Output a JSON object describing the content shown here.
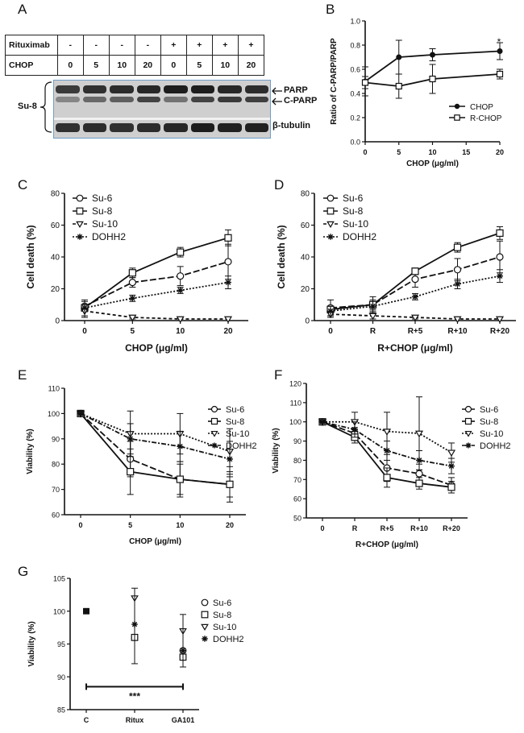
{
  "panels": {
    "A": "A",
    "B": "B",
    "C": "C",
    "D": "D",
    "E": "E",
    "F": "F",
    "G": "G"
  },
  "blot": {
    "rows": [
      {
        "label": "Rituximab",
        "values": [
          "-",
          "-",
          "-",
          "-",
          "+",
          "+",
          "+",
          "+"
        ]
      },
      {
        "label": "CHOP",
        "values": [
          "0",
          "5",
          "10",
          "20",
          "0",
          "5",
          "10",
          "20"
        ]
      }
    ],
    "cell_line": "Su-8",
    "band_labels": [
      "PARP",
      "C-PARP",
      "β-tubulin"
    ],
    "intensity": {
      "parp": [
        0.75,
        0.8,
        0.82,
        0.85,
        0.9,
        0.9,
        0.85,
        0.82
      ],
      "cparp": [
        0.35,
        0.5,
        0.55,
        0.7,
        0.45,
        0.7,
        0.75,
        0.72
      ],
      "tubulin": [
        0.8,
        0.82,
        0.8,
        0.82,
        0.85,
        0.9,
        0.88,
        0.88
      ]
    }
  },
  "chart_data": [
    {
      "id": "B",
      "type": "line",
      "xlabel": "CHOP (μg/ml)",
      "ylabel": "Ratio of C-PARP/PARP",
      "xlim": [
        0,
        20
      ],
      "ylim": [
        0,
        1.0
      ],
      "xticks": [
        "0",
        "5",
        "10",
        "15",
        "20"
      ],
      "yticks": [
        "0.0",
        "0.2",
        "0.4",
        "0.6",
        "0.8",
        "1.0"
      ],
      "x": [
        0,
        5,
        10,
        20
      ],
      "series": [
        {
          "name": "CHOP",
          "marker": "dot",
          "dash": "solid",
          "values": [
            0.5,
            0.7,
            0.72,
            0.75
          ],
          "err": [
            0.12,
            0.14,
            0.05,
            0.07
          ]
        },
        {
          "name": "R-CHOP",
          "marker": "square",
          "dash": "solid",
          "values": [
            0.49,
            0.46,
            0.52,
            0.56
          ],
          "err": [
            0.05,
            0.1,
            0.12,
            0.04
          ]
        }
      ],
      "annotations": [
        "*"
      ],
      "legend": "bottom-right"
    },
    {
      "id": "C",
      "type": "line",
      "xlabel": "CHOP (μg/ml)",
      "ylabel": "Cell death (%)",
      "ylim": [
        0,
        80
      ],
      "yticks": [
        "0",
        "20",
        "40",
        "60",
        "80"
      ],
      "categories": [
        "0",
        "5",
        "10",
        "20"
      ],
      "series": [
        {
          "name": "Su-6",
          "marker": "circle",
          "dash": "long",
          "values": [
            9,
            24,
            28,
            37
          ],
          "err": [
            3,
            3,
            6,
            11
          ]
        },
        {
          "name": "Su-8",
          "marker": "square",
          "dash": "solid",
          "values": [
            8,
            30,
            43,
            52
          ],
          "err": [
            2,
            3,
            3,
            5
          ]
        },
        {
          "name": "Su-10",
          "marker": "triangle",
          "dash": "dashed",
          "values": [
            6,
            2,
            1,
            1
          ],
          "err": [
            4,
            1,
            1,
            1
          ]
        },
        {
          "name": "DOHH2",
          "marker": "star",
          "dash": "dotted",
          "values": [
            8,
            14,
            19,
            24
          ],
          "err": [
            5,
            2,
            2,
            4
          ]
        }
      ],
      "legend": "top-left"
    },
    {
      "id": "D",
      "type": "line",
      "xlabel": "R+CHOP (μg/ml)",
      "ylabel": "Cell death (%)",
      "ylim": [
        0,
        80
      ],
      "yticks": [
        "0",
        "20",
        "40",
        "60",
        "80"
      ],
      "categories": [
        "0",
        "R",
        "R+5",
        "R+10",
        "R+20"
      ],
      "series": [
        {
          "name": "Su-6",
          "marker": "circle",
          "dash": "long",
          "values": [
            8,
            10,
            26,
            32,
            40
          ],
          "err": [
            5,
            5,
            5,
            7,
            10
          ]
        },
        {
          "name": "Su-8",
          "marker": "square",
          "dash": "solid",
          "values": [
            7,
            10,
            31,
            46,
            55
          ],
          "err": [
            2,
            3,
            2,
            3,
            4
          ]
        },
        {
          "name": "Su-10",
          "marker": "triangle",
          "dash": "dashed",
          "values": [
            4,
            3,
            2,
            1,
            1
          ],
          "err": [
            2,
            2,
            1,
            1,
            1
          ]
        },
        {
          "name": "DOHH2",
          "marker": "star",
          "dash": "dotted",
          "values": [
            6,
            9,
            15,
            23,
            28
          ],
          "err": [
            3,
            3,
            2,
            3,
            4
          ]
        }
      ],
      "legend": "top-left"
    },
    {
      "id": "E",
      "type": "line",
      "xlabel": "CHOP (μg/ml)",
      "ylabel": "Viability (%)",
      "ylim": [
        60,
        110
      ],
      "yticks": [
        "60",
        "70",
        "80",
        "90",
        "100",
        "110"
      ],
      "categories": [
        "0",
        "5",
        "10",
        "20"
      ],
      "series": [
        {
          "name": "Su-6",
          "marker": "circle",
          "dash": "long",
          "values": [
            100,
            82,
            74,
            72
          ],
          "err": [
            0.5,
            7,
            7,
            5
          ]
        },
        {
          "name": "Su-8",
          "marker": "square",
          "dash": "solid",
          "values": [
            100,
            77,
            74,
            72
          ],
          "err": [
            0.5,
            9,
            6,
            7
          ]
        },
        {
          "name": "Su-10",
          "marker": "triangle",
          "dash": "dotted",
          "values": [
            100,
            92,
            92,
            85
          ],
          "err": [
            0.5,
            9,
            8,
            9
          ]
        },
        {
          "name": "DOHH2",
          "marker": "star",
          "dash": "dashdot",
          "values": [
            100,
            90,
            87,
            82
          ],
          "err": [
            0.5,
            6,
            6,
            7
          ]
        }
      ],
      "legend": "right"
    },
    {
      "id": "F",
      "type": "line",
      "xlabel": "R+CHOP (μg/ml)",
      "ylabel": "Viability (%)",
      "ylim": [
        50,
        120
      ],
      "yticks": [
        "50",
        "60",
        "70",
        "80",
        "90",
        "100",
        "110",
        "120"
      ],
      "categories": [
        "0",
        "R",
        "R+5",
        "R+10",
        "R+20"
      ],
      "series": [
        {
          "name": "Su-6",
          "marker": "circle",
          "dash": "long",
          "values": [
            100,
            94,
            76,
            73,
            67
          ],
          "err": [
            0.5,
            3,
            7,
            5,
            4
          ]
        },
        {
          "name": "Su-8",
          "marker": "square",
          "dash": "solid",
          "values": [
            100,
            92,
            71,
            68,
            66
          ],
          "err": [
            0.5,
            3,
            5,
            3,
            3
          ]
        },
        {
          "name": "Su-10",
          "marker": "triangle",
          "dash": "dotted",
          "values": [
            100,
            100,
            95,
            94,
            84
          ],
          "err": [
            0.5,
            5,
            10,
            19,
            5
          ]
        },
        {
          "name": "DOHH2",
          "marker": "star",
          "dash": "dashdot",
          "values": [
            100,
            96,
            85,
            80,
            77
          ],
          "err": [
            0.5,
            4,
            5,
            5,
            4
          ]
        }
      ],
      "legend": "right"
    },
    {
      "id": "G",
      "type": "scatter",
      "xlabel": "",
      "ylabel": "Viability (%)",
      "ylim": [
        85,
        105
      ],
      "yticks": [
        "85",
        "90",
        "95",
        "100",
        "105"
      ],
      "categories": [
        "C",
        "Ritux",
        "GA101"
      ],
      "series": [
        {
          "name": "Su-6",
          "marker": "circle",
          "values": [
            100,
            96,
            94
          ]
        },
        {
          "name": "Su-8",
          "marker": "square",
          "values": [
            100,
            96,
            93
          ]
        },
        {
          "name": "Su-10",
          "marker": "triangle",
          "values": [
            100,
            102,
            97
          ]
        },
        {
          "name": "DOHH2",
          "marker": "star",
          "values": [
            100,
            98,
            94
          ]
        }
      ],
      "error_bars": [
        {
          "x": "Ritux",
          "lo": 92,
          "hi": 103.5
        },
        {
          "x": "GA101",
          "lo": 91.5,
          "hi": 99.5
        }
      ],
      "significance": {
        "label": "***",
        "from": "C",
        "to": "GA101",
        "y": 88.5
      },
      "legend": "right"
    }
  ]
}
